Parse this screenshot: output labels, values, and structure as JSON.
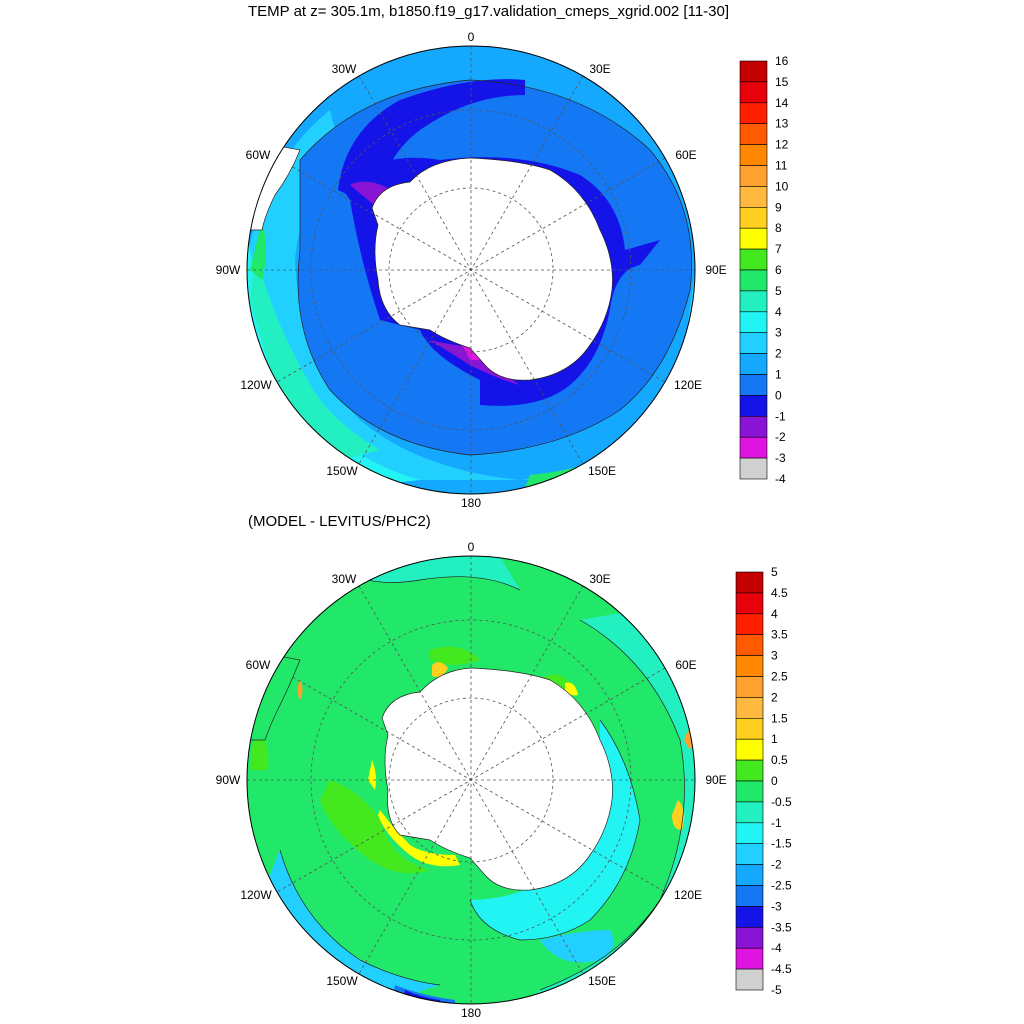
{
  "titles": {
    "top": "TEMP at z= 305.1m, b1850.f19_g17.validation_cmeps_xgrid.002 [11-30]",
    "bottom": "(MODEL - LEVITUS/PHC2)"
  },
  "longitude_labels": {
    "top": "0",
    "e30": "30E",
    "e60": "60E",
    "e90": "90E",
    "e120": "120E",
    "e150": "150E",
    "bottom": "180",
    "w150": "150W",
    "w120": "120W",
    "w90": "90W",
    "w60": "60W",
    "w30": "30W"
  },
  "colorbar_top": {
    "labels": [
      "16",
      "15",
      "14",
      "13",
      "12",
      "11",
      "10",
      "9",
      "8",
      "7",
      "6",
      "5",
      "4",
      "3",
      "2",
      "1",
      "0",
      "-1",
      "-2",
      "-3",
      "-4"
    ],
    "colors": [
      "#c40000",
      "#e8000a",
      "#ff2000",
      "#ff5a00",
      "#ff8800",
      "#ffa030",
      "#ffb840",
      "#ffd020",
      "#ffff00",
      "#44e81e",
      "#22e86a",
      "#22f0c0",
      "#22f4f4",
      "#22d0ff",
      "#14a8ff",
      "#1478f4",
      "#1414e8",
      "#8a14d6",
      "#e014e0",
      "#d0d0d0",
      "#707070"
    ]
  },
  "colorbar_bottom": {
    "labels": [
      "5",
      "4.5",
      "4",
      "3.5",
      "3",
      "2.5",
      "2",
      "1.5",
      "1",
      "0.5",
      "0",
      "-0.5",
      "-1",
      "-1.5",
      "-2",
      "-2.5",
      "-3",
      "-3.5",
      "-4",
      "-4.5",
      "-5"
    ],
    "colors": [
      "#c40000",
      "#e8000a",
      "#ff2000",
      "#ff5a00",
      "#ff8800",
      "#ffa030",
      "#ffb840",
      "#ffd020",
      "#ffff00",
      "#44e81e",
      "#22e86a",
      "#22f0c0",
      "#22f4f4",
      "#22d0ff",
      "#14a8ff",
      "#1478f4",
      "#1414e8",
      "#8a14d6",
      "#e014e0",
      "#d0d0d0",
      "#707070"
    ]
  }
}
